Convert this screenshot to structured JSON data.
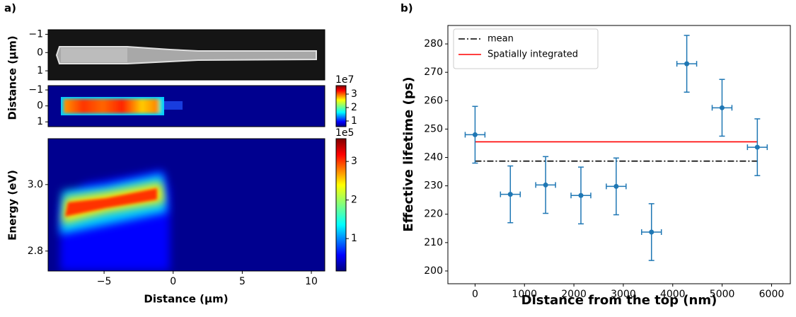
{
  "chart_data": [
    {
      "type": "image",
      "panel_label": "a)",
      "ylabel": "Distance (μm)",
      "ylim": [
        1.5,
        -1.25
      ],
      "yticks": [
        {
          "value": -1,
          "label": "−1"
        },
        0,
        1
      ],
      "xlim": [
        -9.05,
        10.97
      ]
    },
    {
      "type": "heatmap",
      "ylim": [
        1.3,
        -1.27
      ],
      "yticks": [
        {
          "value": -1,
          "label": "−1"
        },
        0,
        1
      ],
      "xlim": [
        -9.05,
        10.97
      ],
      "colorbar": {
        "label": "1e7",
        "lim": [
          0.58,
          3.63
        ],
        "ticks": [
          1,
          2,
          3
        ]
      }
    },
    {
      "type": "heatmap",
      "ylabel": "Energy (eV)",
      "xlabel": "Distance (μm)",
      "ylim": [
        2.74,
        3.138
      ],
      "yticks": [
        2.8,
        {
          "value": 3.0,
          "label": "3.0"
        }
      ],
      "xlim": [
        -9.05,
        10.97
      ],
      "xticks": [
        {
          "value": -5,
          "label": "−5"
        },
        0,
        5,
        10
      ],
      "colorbar": {
        "label": "1e5",
        "lim": [
          0.16,
          3.59
        ],
        "ticks": [
          1,
          2,
          3
        ]
      }
    },
    {
      "type": "scatter",
      "panel_label": "b)",
      "xlabel": "Distance from the top (nm)",
      "ylabel": "Effective lifetime (ps)",
      "x": [
        0,
        714,
        1428,
        2142,
        2856,
        3570,
        4284,
        4998,
        5712
      ],
      "series": [
        {
          "color": "#1f77b4",
          "values": [
            248,
            227,
            230.3,
            226.6,
            229.8,
            213.7,
            273,
            257.5,
            243.6
          ],
          "yerr": [
            10,
            10,
            10,
            10,
            10,
            10,
            10,
            10,
            10
          ],
          "xerr": [
            200,
            200,
            200,
            200,
            200,
            200,
            200,
            200,
            200
          ]
        }
      ],
      "lines": [
        {
          "name": "mean",
          "value": 238.7,
          "x": [
            0,
            5712
          ],
          "color": "#000000",
          "dash": "9 3 2 3"
        },
        {
          "name": "Spatially integrated",
          "value": 245.5,
          "x": [
            0,
            5712
          ],
          "color": "#ff0000"
        }
      ],
      "xlim": [
        -550,
        6380
      ],
      "xticks": [
        0,
        1000,
        2000,
        3000,
        4000,
        5000,
        6000
      ],
      "ylim": [
        195.5,
        286.5
      ],
      "yticks": [
        200,
        210,
        220,
        230,
        240,
        250,
        260,
        270,
        280
      ],
      "legend": "upper left"
    }
  ]
}
